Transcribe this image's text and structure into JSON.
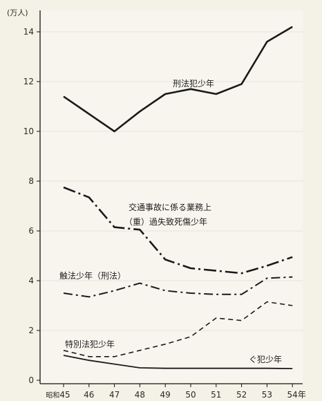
{
  "chart_data": {
    "type": "line",
    "yunit_label": "(万人)",
    "x_first_prefix": "昭和",
    "x_last_suffix": "年",
    "categories": [
      "45",
      "46",
      "47",
      "48",
      "49",
      "50",
      "51",
      "52",
      "53",
      "54"
    ],
    "yticks": [
      "0",
      "2",
      "4",
      "6",
      "8",
      "10",
      "12",
      "14"
    ],
    "ylim": [
      0,
      14.8
    ],
    "series": [
      {
        "name": "刑法犯少年",
        "style": "solid",
        "values": [
          11.4,
          10.7,
          10.0,
          10.8,
          11.5,
          11.7,
          11.5,
          11.9,
          13.6,
          14.2
        ]
      },
      {
        "name": "交通事故に係る業務上（重）過失致死傷少年",
        "label_lines": [
          "交通事故に係る業務上",
          "（重）過失致死傷少年"
        ],
        "style": "longdash-dot",
        "values": [
          7.75,
          7.35,
          6.15,
          6.05,
          4.85,
          4.5,
          4.4,
          4.3,
          4.6,
          4.95
        ]
      },
      {
        "name": "触法少年（刑法）",
        "style": "dash-dot",
        "values": [
          3.5,
          3.35,
          3.6,
          3.9,
          3.6,
          3.5,
          3.45,
          3.45,
          4.1,
          4.15
        ]
      },
      {
        "name": "特別法犯少年",
        "style": "dashed",
        "values": [
          1.2,
          0.95,
          0.95,
          1.2,
          1.45,
          1.75,
          2.5,
          2.4,
          3.15,
          3.0
        ]
      },
      {
        "name": "ぐ犯少年",
        "style": "solid",
        "values": [
          1.0,
          0.8,
          0.65,
          0.5,
          0.48,
          0.48,
          0.48,
          0.48,
          0.48,
          0.47
        ]
      }
    ]
  }
}
